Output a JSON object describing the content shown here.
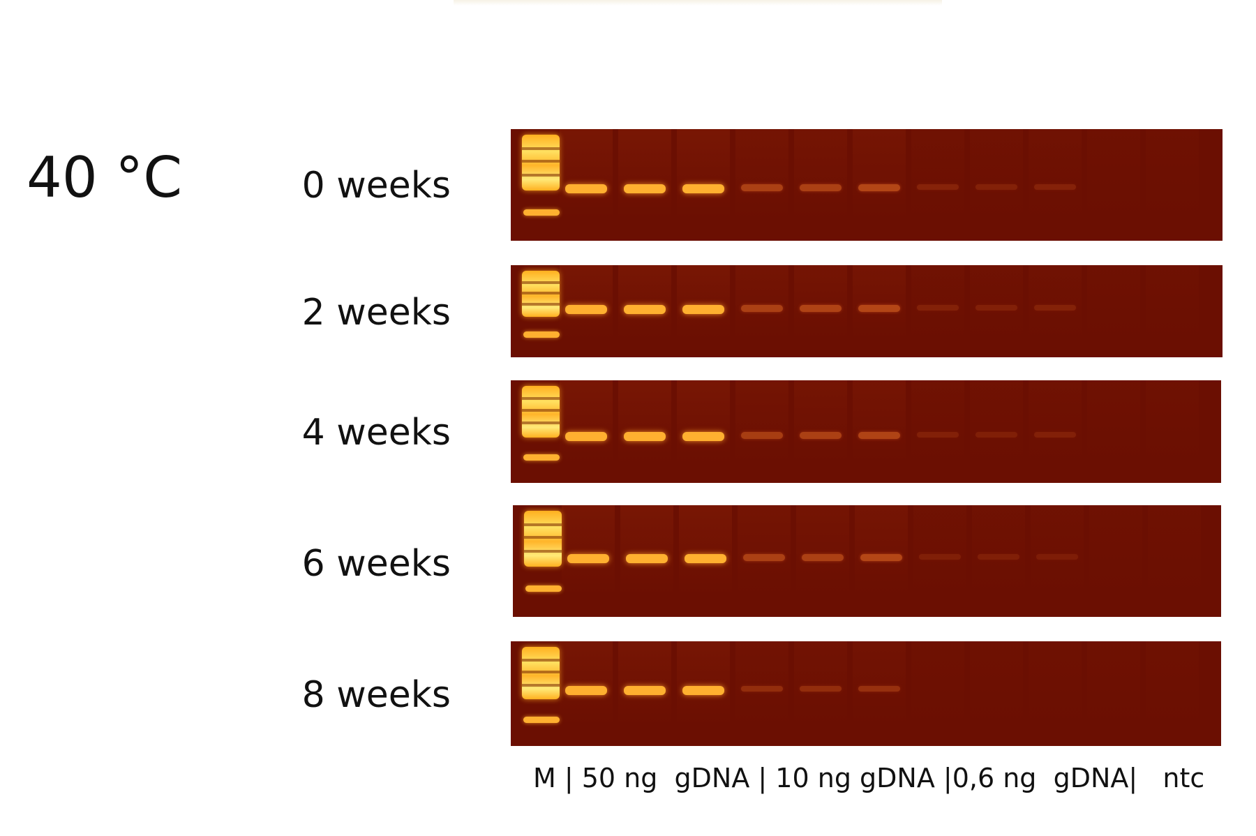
{
  "temperature_label": "40 °C",
  "lane_caption": "M | 50 ng  gDNA | 10 ng gDNA |0,6 ng  gDNA|   ntc",
  "gels": [
    {
      "time_label": "0 weeks",
      "intensities": [
        1.0,
        1.0,
        1.0,
        0.6,
        0.6,
        0.7,
        0.15,
        0.12,
        0.14,
        0,
        0
      ]
    },
    {
      "time_label": "2 weeks",
      "intensities": [
        1.0,
        1.0,
        1.0,
        0.6,
        0.65,
        0.7,
        0.12,
        0.1,
        0.13,
        0,
        0
      ]
    },
    {
      "time_label": "4 weeks",
      "intensities": [
        1.0,
        1.0,
        1.0,
        0.55,
        0.6,
        0.65,
        0.1,
        0.08,
        0.1,
        0,
        0
      ]
    },
    {
      "time_label": "6 weeks",
      "intensities": [
        1.0,
        1.0,
        1.0,
        0.6,
        0.6,
        0.7,
        0.08,
        0.08,
        0.06,
        0,
        0
      ]
    },
    {
      "time_label": "8 weeks",
      "intensities": [
        0.85,
        0.85,
        0.85,
        0.3,
        0.3,
        0.35,
        0,
        0,
        0,
        0,
        0
      ]
    }
  ],
  "colors": {
    "gel_background": "#6b0f02",
    "band_bright": "#ffb030",
    "band_dim": "#c0501a"
  }
}
